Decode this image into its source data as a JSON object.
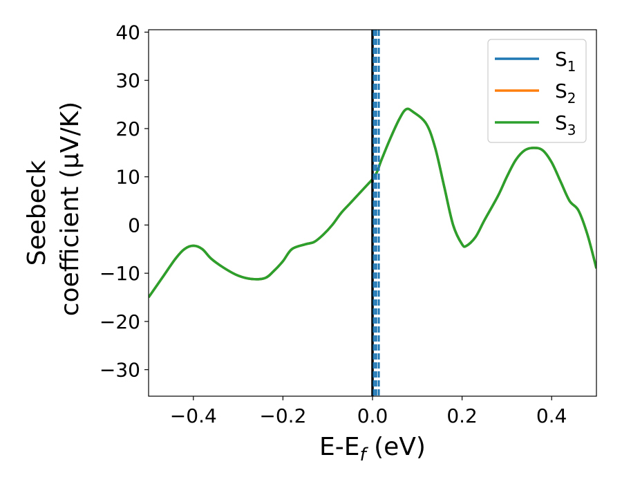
{
  "chart_data": {
    "type": "line",
    "xlabel": "E-E_f (eV)",
    "ylabel_line1": "Seebeck",
    "ylabel_line2": "coefficient  (μV/K)",
    "xlim": [
      -0.5,
      0.5
    ],
    "ylim": [
      -35.5,
      40.5
    ],
    "x_ticks": [
      -0.4,
      -0.2,
      0.0,
      0.2,
      0.4
    ],
    "x_tick_labels": [
      "−0.4",
      "−0.2",
      "0.0",
      "0.2",
      "0.4"
    ],
    "y_ticks": [
      -30,
      -20,
      -10,
      0,
      10,
      20,
      30,
      40
    ],
    "y_tick_labels": [
      "−30",
      "−20",
      "−10",
      "0",
      "10",
      "20",
      "30",
      "40"
    ],
    "grid": false,
    "legend_position": "top-right",
    "series": [
      {
        "name": "S1",
        "color": "#1f77b4",
        "x": [
          -0.5,
          -0.47,
          -0.44,
          -0.42,
          -0.4,
          -0.38,
          -0.36,
          -0.33,
          -0.3,
          -0.27,
          -0.24,
          -0.22,
          -0.2,
          -0.18,
          -0.15,
          -0.13,
          -0.11,
          -0.09,
          -0.07,
          -0.05,
          -0.03,
          -0.01,
          0.0,
          0.01,
          0.02,
          0.04,
          0.06,
          0.075,
          0.09,
          0.12,
          0.14,
          0.16,
          0.18,
          0.2,
          0.21,
          0.23,
          0.25,
          0.28,
          0.3,
          0.32,
          0.34,
          0.36,
          0.38,
          0.4,
          0.42,
          0.44,
          0.46,
          0.48,
          0.5
        ],
        "y": [
          -15,
          -11,
          -7,
          -5,
          -4.3,
          -5,
          -7,
          -9,
          -10.5,
          -11.2,
          -11,
          -9.5,
          -7.5,
          -5,
          -4,
          -3.5,
          -2,
          0,
          2.5,
          4.5,
          6.5,
          8.5,
          9.5,
          11,
          13.5,
          18,
          22,
          24,
          23.5,
          21,
          16,
          8,
          0,
          -4,
          -4.3,
          -2.5,
          1,
          6,
          10,
          13.5,
          15.5,
          16,
          15.5,
          13,
          9,
          5,
          3,
          -2,
          -9
        ]
      },
      {
        "name": "S2",
        "color": "#ff7f0e",
        "x": [
          -0.5,
          -0.47,
          -0.44,
          -0.42,
          -0.4,
          -0.38,
          -0.36,
          -0.33,
          -0.3,
          -0.27,
          -0.24,
          -0.22,
          -0.2,
          -0.18,
          -0.15,
          -0.13,
          -0.11,
          -0.09,
          -0.07,
          -0.05,
          -0.03,
          -0.01,
          0.0,
          0.01,
          0.02,
          0.04,
          0.06,
          0.075,
          0.09,
          0.12,
          0.14,
          0.16,
          0.18,
          0.2,
          0.21,
          0.23,
          0.25,
          0.28,
          0.3,
          0.32,
          0.34,
          0.36,
          0.38,
          0.4,
          0.42,
          0.44,
          0.46,
          0.48,
          0.5
        ],
        "y": [
          -15,
          -11,
          -7,
          -5,
          -4.3,
          -5,
          -7,
          -9,
          -10.5,
          -11.2,
          -11,
          -9.5,
          -7.5,
          -5,
          -4,
          -3.5,
          -2,
          0,
          2.5,
          4.5,
          6.5,
          8.5,
          9.5,
          11,
          13.5,
          18,
          22,
          24,
          23.5,
          21,
          16,
          8,
          0,
          -4,
          -4.3,
          -2.5,
          1,
          6,
          10,
          13.5,
          15.5,
          16,
          15.5,
          13,
          9,
          5,
          3,
          -2,
          -9
        ]
      },
      {
        "name": "S3",
        "color": "#2ca02c",
        "x": [
          -0.5,
          -0.47,
          -0.44,
          -0.42,
          -0.4,
          -0.38,
          -0.36,
          -0.33,
          -0.3,
          -0.27,
          -0.24,
          -0.22,
          -0.2,
          -0.18,
          -0.15,
          -0.13,
          -0.11,
          -0.09,
          -0.07,
          -0.05,
          -0.03,
          -0.01,
          0.0,
          0.01,
          0.02,
          0.04,
          0.06,
          0.075,
          0.09,
          0.12,
          0.14,
          0.16,
          0.18,
          0.2,
          0.21,
          0.23,
          0.25,
          0.28,
          0.3,
          0.32,
          0.34,
          0.36,
          0.38,
          0.4,
          0.42,
          0.44,
          0.46,
          0.48,
          0.5
        ],
        "y": [
          -15,
          -11,
          -7,
          -5,
          -4.3,
          -5,
          -7,
          -9,
          -10.5,
          -11.2,
          -11,
          -9.5,
          -7.5,
          -5,
          -4,
          -3.5,
          -2,
          0,
          2.5,
          4.5,
          6.5,
          8.5,
          9.5,
          11,
          13.5,
          18,
          22,
          24,
          23.5,
          21,
          16,
          8,
          0,
          -4,
          -4.3,
          -2.5,
          1,
          6,
          10,
          13.5,
          15.5,
          16,
          15.5,
          13,
          9,
          5,
          3,
          -2,
          -9
        ]
      }
    ],
    "vertical_lines": [
      {
        "x": 0.0,
        "color": "#000000",
        "style": "solid"
      },
      {
        "x": 0.003,
        "color": "#1f77b4",
        "style": "dashed"
      },
      {
        "x": 0.008,
        "color": "#1f77b4",
        "style": "dashed"
      },
      {
        "x": 0.014,
        "color": "#1f77b4",
        "style": "dashed"
      }
    ],
    "legend": [
      {
        "label": "S",
        "sub": "1",
        "color": "#1f77b4"
      },
      {
        "label": "S",
        "sub": "2",
        "color": "#ff7f0e"
      },
      {
        "label": "S",
        "sub": "3",
        "color": "#2ca02c"
      }
    ]
  }
}
